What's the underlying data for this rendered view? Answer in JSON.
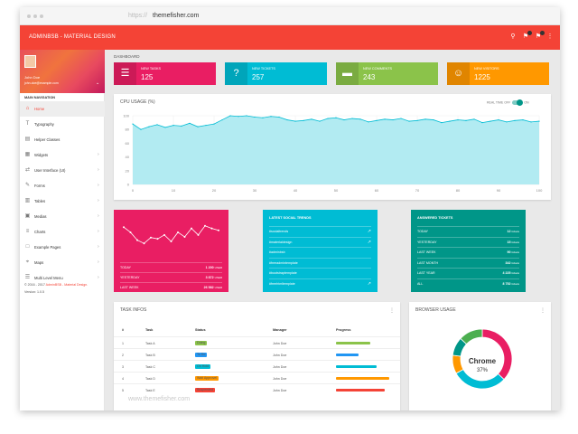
{
  "browser": {
    "url_protocol": "https://",
    "url": "themefisher.com"
  },
  "topbar": {
    "title": "ADMINBSB - MATERIAL DESIGN",
    "icons": [
      "search-icon",
      "flag-icon",
      "notifications-icon",
      "more-vert-icon"
    ],
    "color": "#f44336"
  },
  "user": {
    "name": "John Doe",
    "email": "john.doe@example.com"
  },
  "sidebar": {
    "header": "MAIN NAVIGATION",
    "items": [
      {
        "label": "Home",
        "icon": "home-icon",
        "active": true
      },
      {
        "label": "Typography",
        "icon": "text-icon"
      },
      {
        "label": "Helper Classes",
        "icon": "layers-icon"
      },
      {
        "label": "Widgets",
        "icon": "widgets-icon"
      },
      {
        "label": "User Interface (UI)",
        "icon": "swap-icon"
      },
      {
        "label": "Forms",
        "icon": "forms-icon"
      },
      {
        "label": "Tables",
        "icon": "tables-icon"
      },
      {
        "label": "Medias",
        "icon": "medias-icon"
      },
      {
        "label": "Charts",
        "icon": "charts-icon"
      },
      {
        "label": "Example Pages",
        "icon": "pages-icon"
      },
      {
        "label": "Maps",
        "icon": "maps-icon"
      },
      {
        "label": "Multi Level Menu",
        "icon": "menu-icon"
      }
    ],
    "legal_prefix": "© 2016 - 2017",
    "legal_brand": "AdminBSB - Material Design.",
    "version": "Version: 1.0.5"
  },
  "breadcrumb": "DASHBOARD",
  "info_boxes": [
    {
      "title": "NEW TASKS",
      "value": "125",
      "icon": "playlist-icon",
      "color": "#e91e63"
    },
    {
      "title": "NEW TICKETS",
      "value": "257",
      "icon": "help-icon",
      "color": "#00bcd4"
    },
    {
      "title": "NEW COMMENTS",
      "value": "243",
      "icon": "forum-icon",
      "color": "#8bc34a"
    },
    {
      "title": "NEW VISITORS",
      "value": "1225",
      "icon": "person-add-icon",
      "color": "#ff9800"
    }
  ],
  "cpu": {
    "title": "CPU USAGE (%)",
    "toggle_label": "REAL TIME",
    "toggle_off": "OFF",
    "toggle_on": "ON"
  },
  "chart_data": {
    "type": "area",
    "title": "CPU USAGE (%)",
    "ylim": [
      0,
      100
    ],
    "yticks": [
      0,
      20,
      40,
      60,
      80,
      100
    ],
    "xticks": [
      0,
      10,
      20,
      30,
      40,
      50,
      60,
      70,
      80,
      90,
      100
    ],
    "x": [
      0,
      2,
      4,
      6,
      8,
      10,
      12,
      14,
      16,
      18,
      20,
      22,
      24,
      26,
      28,
      30,
      32,
      34,
      36,
      38,
      40,
      42,
      44,
      46,
      48,
      50,
      52,
      54,
      56,
      58,
      60,
      62,
      64,
      66,
      68,
      70,
      72,
      74,
      76,
      78,
      80,
      82,
      84,
      86,
      88,
      90,
      92,
      94,
      96,
      98,
      100
    ],
    "values": [
      88,
      80,
      84,
      87,
      83,
      86,
      85,
      89,
      84,
      86,
      88,
      94,
      100,
      99,
      100,
      98,
      97,
      99,
      98,
      94,
      92,
      93,
      95,
      92,
      96,
      97,
      94,
      96,
      95,
      91,
      93,
      95,
      94,
      96,
      92,
      93,
      95,
      94,
      90,
      92,
      94,
      93,
      95,
      90,
      92,
      94,
      91,
      93,
      94,
      91,
      92
    ],
    "grid": true,
    "color": "#00bcd4"
  },
  "sparkline_data": {
    "values": [
      60,
      52,
      40,
      35,
      44,
      42,
      48,
      38,
      52,
      45,
      58,
      48,
      62,
      58,
      55
    ]
  },
  "stats_panel": {
    "rows": [
      {
        "label": "TODAY",
        "value": "1 200",
        "unit": "USER"
      },
      {
        "label": "YESTERDAY",
        "value": "3 872",
        "unit": "USER"
      },
      {
        "label": "LAST WEEK",
        "value": "26 582",
        "unit": "USER"
      }
    ]
  },
  "social_trends": {
    "title": "LATEST SOCIAL TRENDS",
    "items": [
      "#socialtrends",
      "#materialdesign",
      "#adminbsb",
      "#freeadmintemplate",
      "#bootstraptemplate",
      "#freehtmltemplate"
    ]
  },
  "answered_tickets": {
    "title": "ANSWERED TICKETS",
    "rows": [
      {
        "label": "TODAY",
        "value": "12",
        "unit": "tickets"
      },
      {
        "label": "YESTERDAY",
        "value": "15",
        "unit": "tickets"
      },
      {
        "label": "LAST WEEK",
        "value": "90",
        "unit": "tickets"
      },
      {
        "label": "LAST MONTH",
        "value": "342",
        "unit": "tickets"
      },
      {
        "label": "LAST YEAR",
        "value": "4 225",
        "unit": "tickets"
      },
      {
        "label": "ALL",
        "value": "8 752",
        "unit": "tickets"
      }
    ]
  },
  "task_infos": {
    "title": "TASK INFOS",
    "columns": [
      "#",
      "Task",
      "Status",
      "Manager",
      "Progress"
    ],
    "rows": [
      {
        "num": "1",
        "task": "Task A",
        "status": "Doing",
        "status_color": "#8bc34a",
        "manager": "John Doe",
        "progress": 62,
        "bar_color": "#8bc34a"
      },
      {
        "num": "2",
        "task": "Task B",
        "status": "To Do",
        "status_color": "#2196f3",
        "manager": "John Doe",
        "progress": 40,
        "bar_color": "#2196f3"
      },
      {
        "num": "3",
        "task": "Task C",
        "status": "On Hold",
        "status_color": "#00bcd4",
        "manager": "John Doe",
        "progress": 72,
        "bar_color": "#00bcd4"
      },
      {
        "num": "4",
        "task": "Task D",
        "status": "Wait Approvel",
        "status_color": "#ff9800",
        "manager": "John Doe",
        "progress": 95,
        "bar_color": "#ff9800"
      },
      {
        "num": "5",
        "task": "Task E",
        "status": "Suspended",
        "status_color": "#f44336",
        "manager": "John Doe",
        "progress": 87,
        "bar_color": "#f44336"
      }
    ]
  },
  "browser_usage": {
    "title": "BROWSER USAGE",
    "highlight_label": "Chrome",
    "highlight_value": "37%",
    "slices": [
      {
        "name": "Chrome",
        "value": 37,
        "color": "#e91e63"
      },
      {
        "name": "Firefox",
        "value": 30,
        "color": "#00bcd4"
      },
      {
        "name": "Safari",
        "value": 10,
        "color": "#ff9800"
      },
      {
        "name": "Opera",
        "value": 10,
        "color": "#009688"
      },
      {
        "name": "Other",
        "value": 13,
        "color": "#4caf50"
      }
    ]
  },
  "watermark": "www.themefisher.com"
}
